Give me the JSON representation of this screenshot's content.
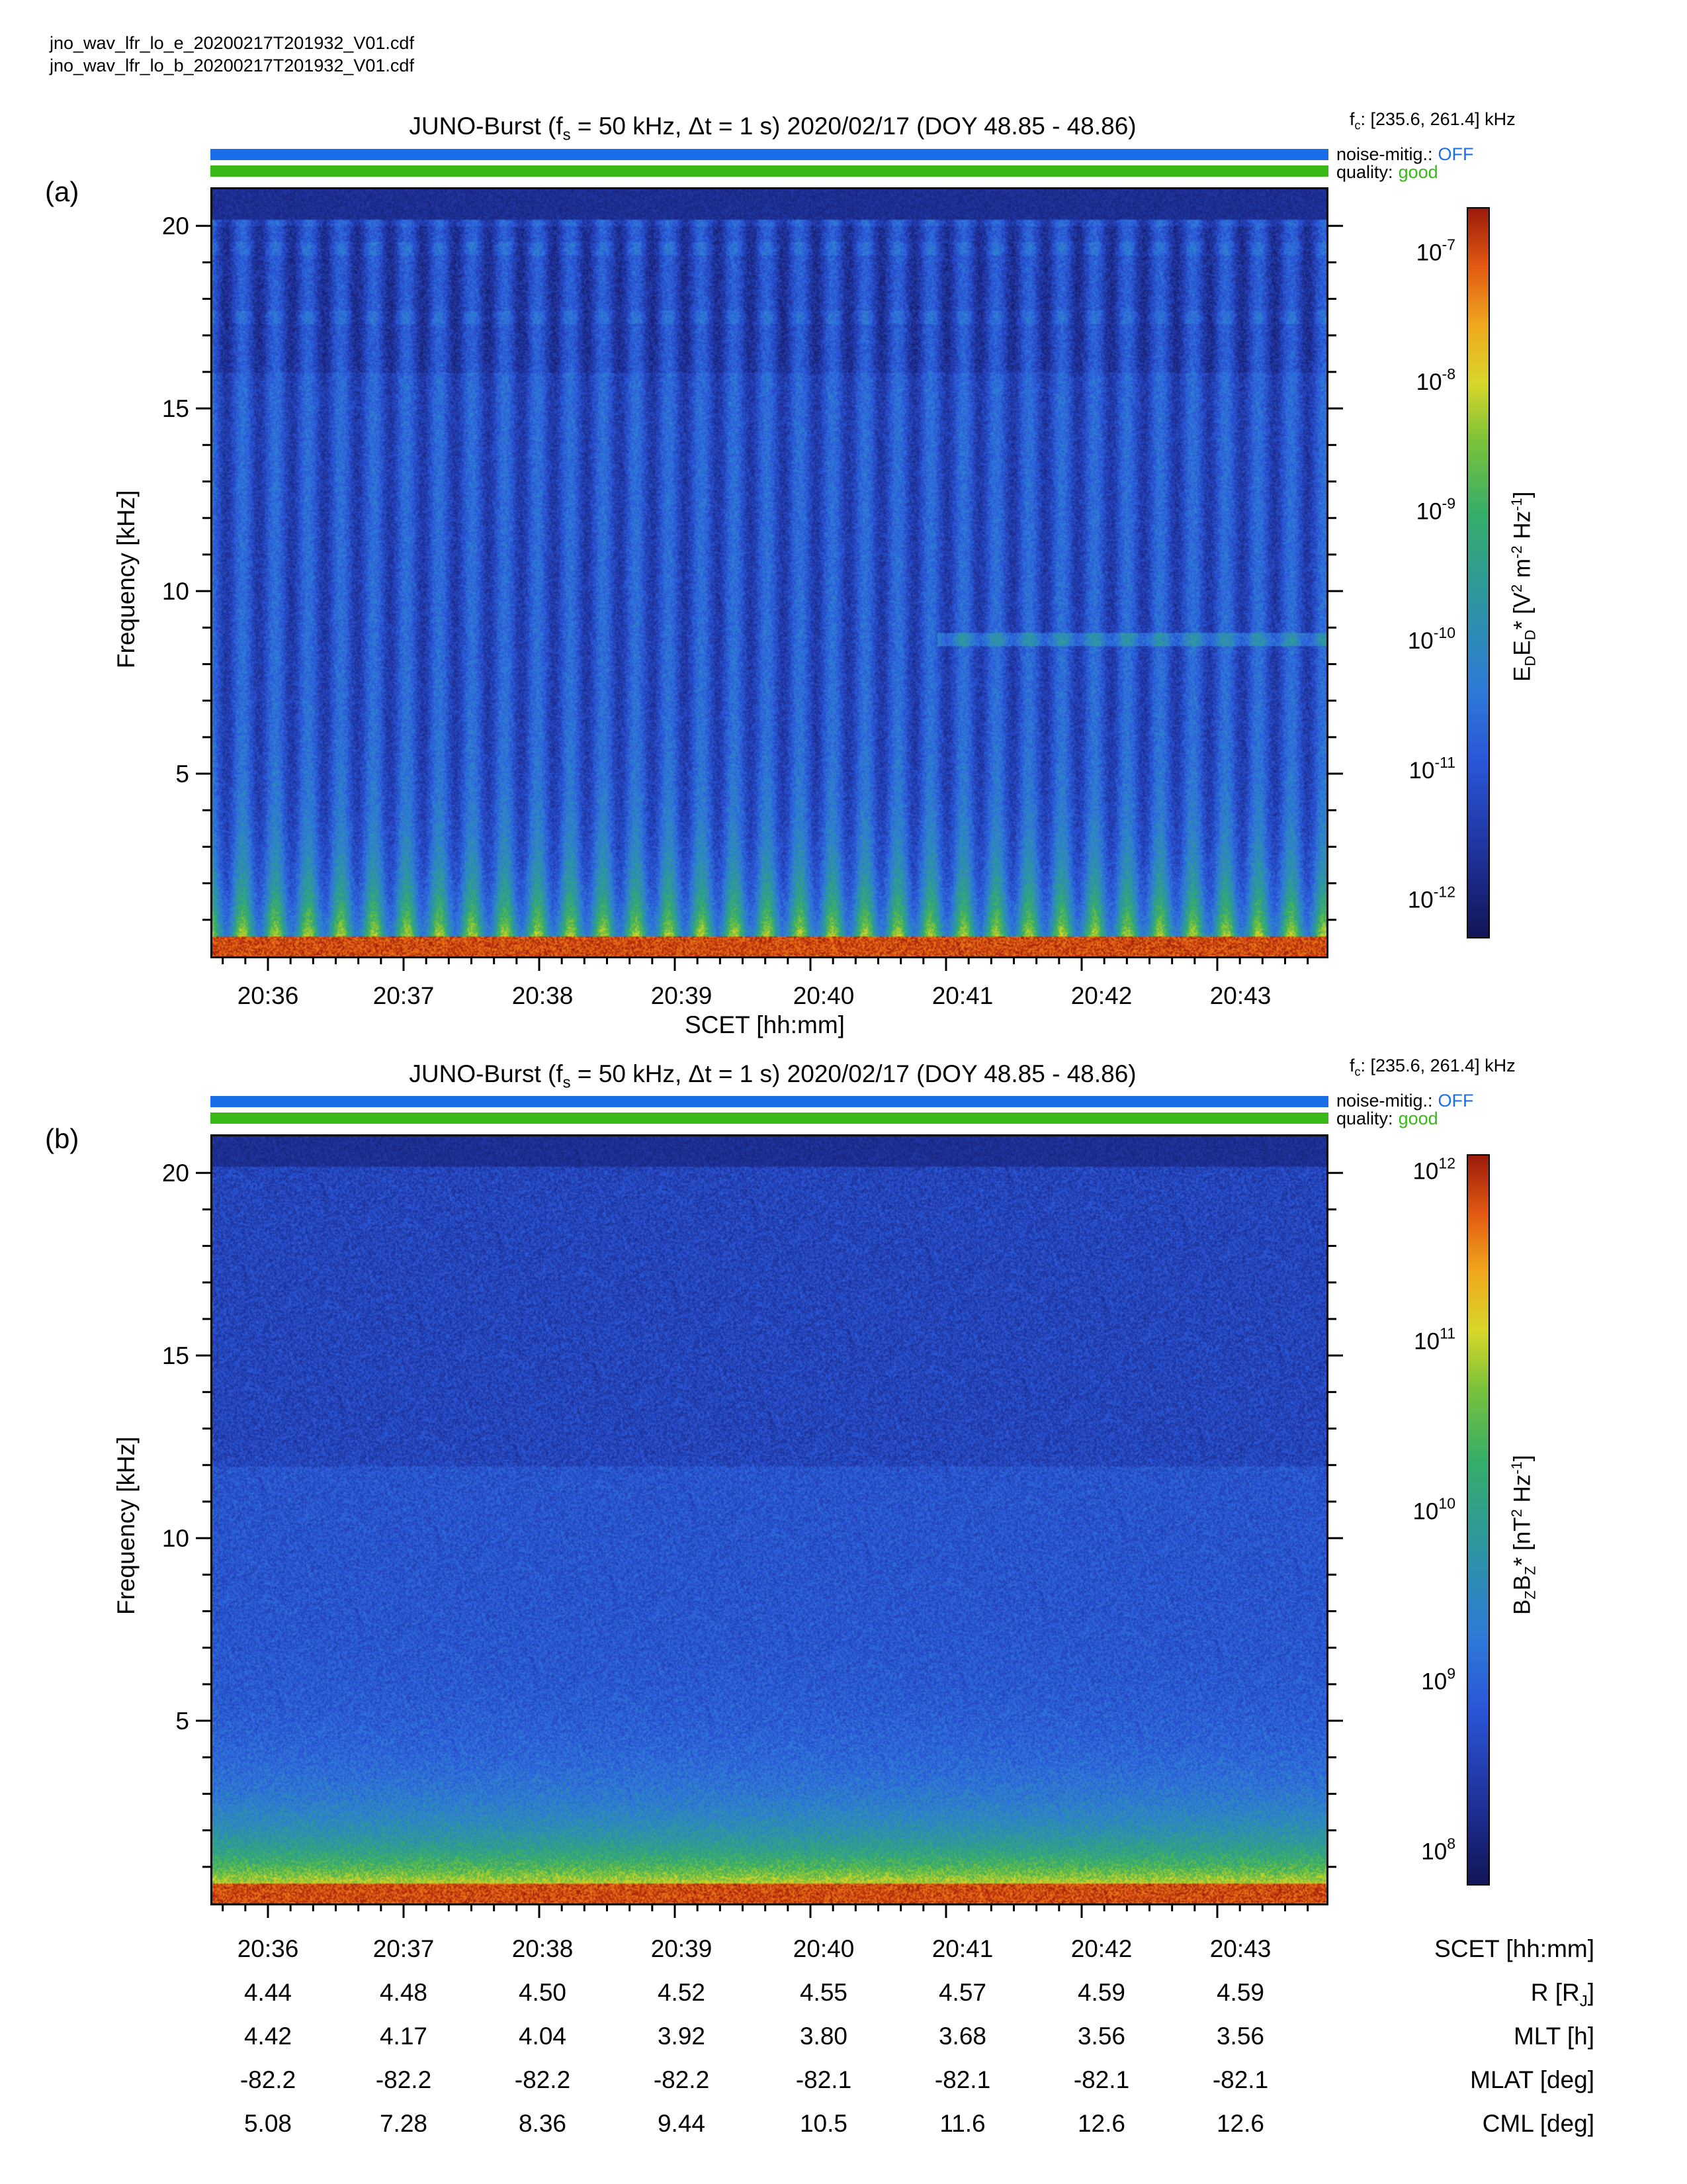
{
  "files": [
    "jno_wav_lfr_lo_e_20200217T201932_V01.cdf",
    "jno_wav_lfr_lo_b_20200217T201932_V01.cdf"
  ],
  "colors": {
    "noise_bar": "#1a6ee8",
    "quality_bar": "#39b817",
    "off_text": "#1a6ee8",
    "good_text": "#39b817"
  },
  "chart_data": [
    {
      "type": "heatmap",
      "panel": "(a)",
      "title": {
        "prefix": "JUNO-Burst (f",
        "sub": "s",
        "rest": " = 50 kHz, Δt = 1 s)  2020/02/17 (DOY 48.85 - 48.86)"
      },
      "fc": {
        "pre": "f",
        "sub": "c",
        "rest": ": [235.6, 261.4] kHz"
      },
      "noise_mitig": {
        "label": "noise-mitig.:",
        "value": "OFF"
      },
      "quality": {
        "label": "quality:",
        "value": "good"
      },
      "ylabel": "Frequency [kHz]",
      "xlabel": "SCET [hh:mm]",
      "ylim": [
        0,
        21
      ],
      "yticks": [
        "5",
        "10",
        "15",
        "20"
      ],
      "ytick_values": [
        5,
        10,
        15,
        20
      ],
      "xticks": [
        "20:36",
        "20:37",
        "20:38",
        "20:39",
        "20:40",
        "20:41",
        "20:42",
        "20:43"
      ],
      "colorbar": {
        "label": "EDED* [V² m⁻² Hz⁻¹]",
        "label_parts": {
          "a": "E",
          "as": "D",
          "b": "E",
          "bs": "D",
          "rest": "* [V",
          "u1": "2",
          "mid": " m",
          "u2": "-2",
          "mid2": " Hz",
          "u3": "-1",
          "end": "]"
        },
        "ticks": [
          "-7",
          "-8",
          "-9",
          "-10",
          "-11",
          "-12"
        ],
        "tick_values": [
          -7,
          -8,
          -9,
          -10,
          -11,
          -12
        ],
        "log_range": [
          -12.3,
          -6.65
        ]
      },
      "features": {
        "vertical_striations": 34,
        "narrowband_lines_kHz": [
          19.4,
          17.5,
          8.7
        ]
      }
    },
    {
      "type": "heatmap",
      "panel": "(b)",
      "title": {
        "prefix": "JUNO-Burst (f",
        "sub": "s",
        "rest": " = 50 kHz, Δt = 1 s)  2020/02/17 (DOY 48.85 - 48.86)"
      },
      "fc": {
        "pre": "f",
        "sub": "c",
        "rest": ": [235.6, 261.4] kHz"
      },
      "noise_mitig": {
        "label": "noise-mitig.:",
        "value": "OFF"
      },
      "quality": {
        "label": "quality:",
        "value": "good"
      },
      "ylabel": "Frequency [kHz]",
      "ylim": [
        0,
        21
      ],
      "yticks": [
        "5",
        "10",
        "15",
        "20"
      ],
      "ytick_values": [
        5,
        10,
        15,
        20
      ],
      "xticks": [
        "20:36",
        "20:37",
        "20:38",
        "20:39",
        "20:40",
        "20:41",
        "20:42",
        "20:43"
      ],
      "colorbar": {
        "label": "BZBZ* [nT² Hz⁻¹]",
        "label_parts": {
          "a": "B",
          "as": "Z",
          "b": "B",
          "bs": "Z",
          "rest": "* [nT",
          "u1": "2",
          "mid": " Hz",
          "u2": "-1",
          "end": "]"
        },
        "ticks": [
          "12",
          "11",
          "10",
          "9",
          "8"
        ],
        "tick_values": [
          12,
          11,
          10,
          9,
          8
        ],
        "log_range": [
          7.8,
          12.1
        ]
      }
    }
  ],
  "ephemeris": {
    "rows": [
      {
        "label": "SCET [hh:mm]",
        "values": [
          "20:36",
          "20:37",
          "20:38",
          "20:39",
          "20:40",
          "20:41",
          "20:42",
          "20:43"
        ]
      },
      {
        "label": "R [RJ]",
        "label_main": "R [R",
        "label_sub": "J",
        "label_end": "]",
        "values": [
          "4.44",
          "4.48",
          "4.50",
          "4.52",
          "4.55",
          "4.57",
          "4.59",
          "4.59"
        ]
      },
      {
        "label": "MLT [h]",
        "values": [
          "4.42",
          "4.17",
          "4.04",
          "3.92",
          "3.80",
          "3.68",
          "3.56",
          "3.56"
        ]
      },
      {
        "label": "MLAT [deg]",
        "values": [
          "-82.2",
          "-82.2",
          "-82.2",
          "-82.2",
          "-82.1",
          "-82.1",
          "-82.1",
          "-82.1"
        ]
      },
      {
        "label": "CML [deg]",
        "values": [
          "5.08",
          "7.28",
          "8.36",
          "9.44",
          "10.5",
          "11.6",
          "12.6",
          "12.6"
        ]
      }
    ]
  }
}
